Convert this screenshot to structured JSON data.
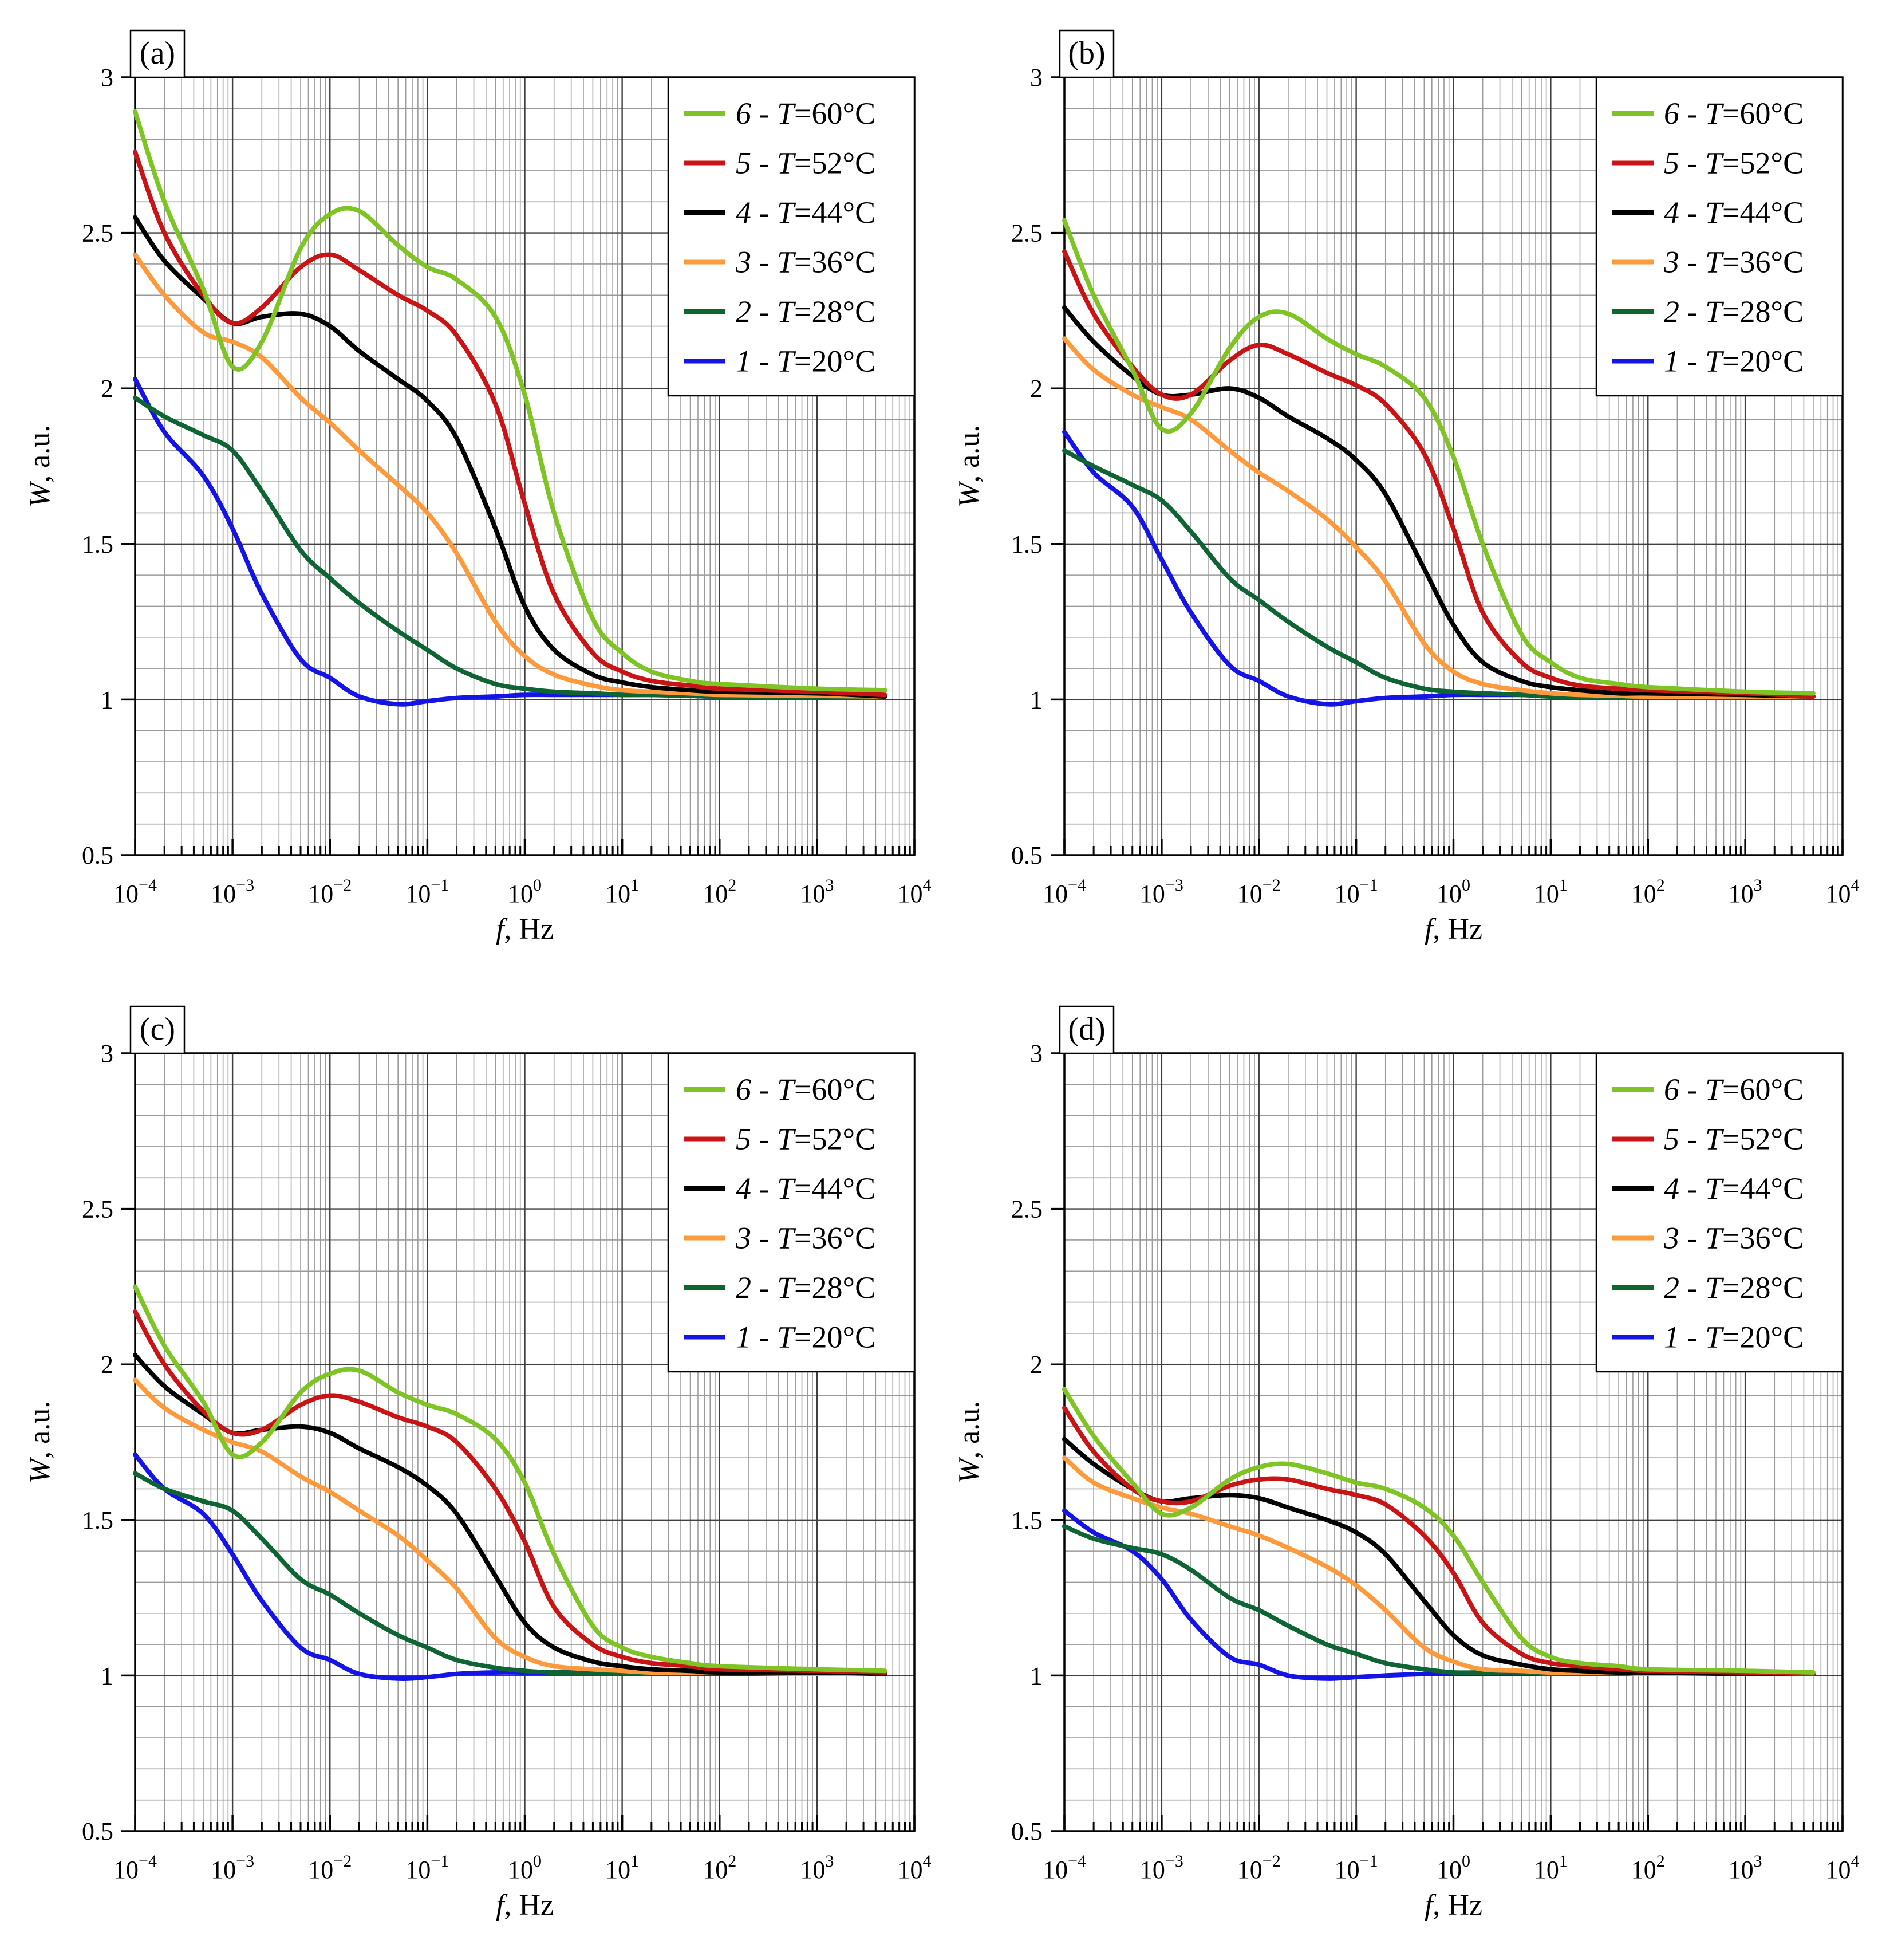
{
  "colors": {
    "1": "#1414e6",
    "2": "#0f6434",
    "3": "#ff9a3c",
    "4": "#000000",
    "5": "#c81414",
    "6": "#7ec424",
    "grid_major": "#404040",
    "grid_minor": "#9a9a9a"
  },
  "chart_data": [
    {
      "panel": "(a)",
      "type": "line",
      "xlabel": "f, Hz",
      "ylabel": "W, a.u.",
      "xscale": "log",
      "xlim": [
        0.0001,
        10000
      ],
      "ylim": [
        0.5,
        3
      ],
      "x_ticks": [
        "10^-4",
        "10^-3",
        "10^-2",
        "10^-1",
        "10^0",
        "10^1",
        "10^2",
        "10^3",
        "10^4"
      ],
      "y_ticks": [
        "0.5",
        "1",
        "1.5",
        "2",
        "2.5",
        "3"
      ],
      "grid": true,
      "legend_position": "top-right",
      "x": [
        0.0001,
        0.0002,
        0.0005,
        0.001,
        0.002,
        0.005,
        0.01,
        0.02,
        0.05,
        0.1,
        0.2,
        0.5,
        1,
        2,
        5,
        10,
        20,
        50,
        100,
        1000,
        5000
      ],
      "series": [
        {
          "name": "6 - T=60°C",
          "num": "6",
          "temp": "60",
          "color_key": "6",
          "values": [
            2.89,
            2.6,
            2.32,
            2.07,
            2.15,
            2.45,
            2.56,
            2.57,
            2.46,
            2.39,
            2.35,
            2.23,
            1.98,
            1.6,
            1.26,
            1.15,
            1.09,
            1.06,
            1.05,
            1.035,
            1.03
          ]
        },
        {
          "name": "5 - T=52°C",
          "num": "5",
          "temp": "52",
          "color_key": "5",
          "values": [
            2.76,
            2.5,
            2.3,
            2.21,
            2.26,
            2.39,
            2.43,
            2.38,
            2.3,
            2.25,
            2.17,
            1.95,
            1.63,
            1.34,
            1.15,
            1.09,
            1.06,
            1.045,
            1.035,
            1.025,
            1.015
          ]
        },
        {
          "name": "4 - T=44°C",
          "num": "4",
          "temp": "44",
          "color_key": "4",
          "values": [
            2.55,
            2.41,
            2.29,
            2.21,
            2.23,
            2.24,
            2.2,
            2.12,
            2.03,
            1.96,
            1.84,
            1.55,
            1.3,
            1.16,
            1.08,
            1.055,
            1.04,
            1.03,
            1.025,
            1.02,
            1.01
          ]
        },
        {
          "name": "3 - T=36°C",
          "num": "3",
          "temp": "36",
          "color_key": "3",
          "values": [
            2.43,
            2.3,
            2.18,
            2.15,
            2.1,
            1.97,
            1.89,
            1.8,
            1.69,
            1.6,
            1.47,
            1.25,
            1.14,
            1.08,
            1.045,
            1.03,
            1.025,
            1.02,
            1.015,
            1.012,
            1.01
          ]
        },
        {
          "name": "2 - T=28°C",
          "num": "2",
          "temp": "28",
          "color_key": "2",
          "values": [
            1.97,
            1.91,
            1.85,
            1.8,
            1.67,
            1.48,
            1.39,
            1.31,
            1.22,
            1.16,
            1.1,
            1.05,
            1.035,
            1.025,
            1.02,
            1.015,
            1.015,
            1.012,
            1.01,
            1.01,
            1.01
          ]
        },
        {
          "name": "1 - T=20°C",
          "num": "1",
          "temp": "20",
          "color_key": "1",
          "values": [
            2.03,
            1.86,
            1.72,
            1.55,
            1.34,
            1.13,
            1.07,
            1.01,
            0.985,
            0.995,
            1.005,
            1.01,
            1.015,
            1.015,
            1.015,
            1.015,
            1.015,
            1.012,
            1.01,
            1.01,
            1.01
          ]
        }
      ]
    },
    {
      "panel": "(b)",
      "type": "line",
      "xlabel": "f, Hz",
      "ylabel": "W, a.u.",
      "xscale": "log",
      "xlim": [
        0.0001,
        10000
      ],
      "ylim": [
        0.5,
        3
      ],
      "x_ticks": [
        "10^-4",
        "10^-3",
        "10^-2",
        "10^-1",
        "10^0",
        "10^1",
        "10^2",
        "10^3",
        "10^4"
      ],
      "y_ticks": [
        "0.5",
        "1",
        "1.5",
        "2",
        "2.5",
        "3"
      ],
      "grid": true,
      "legend_position": "top-right",
      "x": [
        0.0001,
        0.0002,
        0.0005,
        0.001,
        0.002,
        0.005,
        0.01,
        0.02,
        0.05,
        0.1,
        0.2,
        0.5,
        1,
        2,
        5,
        10,
        20,
        50,
        100,
        1000,
        5000
      ],
      "series": [
        {
          "name": "6 - T=60°C",
          "num": "6",
          "temp": "60",
          "color_key": "6",
          "values": [
            2.54,
            2.3,
            2.06,
            1.87,
            1.92,
            2.13,
            2.23,
            2.24,
            2.16,
            2.11,
            2.07,
            1.97,
            1.78,
            1.5,
            1.21,
            1.12,
            1.07,
            1.05,
            1.04,
            1.025,
            1.02
          ]
        },
        {
          "name": "5 - T=52°C",
          "num": "5",
          "temp": "52",
          "color_key": "5",
          "values": [
            2.44,
            2.24,
            2.07,
            1.98,
            1.98,
            2.09,
            2.14,
            2.11,
            2.05,
            2.01,
            1.95,
            1.79,
            1.55,
            1.28,
            1.12,
            1.07,
            1.045,
            1.035,
            1.03,
            1.02,
            1.01
          ]
        },
        {
          "name": "4 - T=44°C",
          "num": "4",
          "temp": "44",
          "color_key": "4",
          "values": [
            2.26,
            2.15,
            2.04,
            1.98,
            1.98,
            2.0,
            1.97,
            1.91,
            1.84,
            1.77,
            1.66,
            1.42,
            1.24,
            1.12,
            1.06,
            1.04,
            1.03,
            1.02,
            1.02,
            1.015,
            1.01
          ]
        },
        {
          "name": "3 - T=36°C",
          "num": "3",
          "temp": "36",
          "color_key": "3",
          "values": [
            2.16,
            2.06,
            1.98,
            1.94,
            1.9,
            1.8,
            1.73,
            1.67,
            1.58,
            1.49,
            1.38,
            1.18,
            1.09,
            1.05,
            1.03,
            1.02,
            1.015,
            1.012,
            1.01,
            1.01,
            1.01
          ]
        },
        {
          "name": "2 - T=28°C",
          "num": "2",
          "temp": "28",
          "color_key": "2",
          "values": [
            1.8,
            1.75,
            1.69,
            1.64,
            1.54,
            1.39,
            1.32,
            1.25,
            1.17,
            1.12,
            1.07,
            1.035,
            1.025,
            1.02,
            1.015,
            1.01,
            1.01,
            1.01,
            1.01,
            1.01,
            1.01
          ]
        },
        {
          "name": "1 - T=20°C",
          "num": "1",
          "temp": "20",
          "color_key": "1",
          "values": [
            1.86,
            1.73,
            1.62,
            1.45,
            1.28,
            1.11,
            1.06,
            1.01,
            0.985,
            0.995,
            1.005,
            1.01,
            1.015,
            1.015,
            1.015,
            1.015,
            1.015,
            1.012,
            1.01,
            1.01,
            1.01
          ]
        }
      ]
    },
    {
      "panel": "(c)",
      "type": "line",
      "xlabel": "f, Hz",
      "ylabel": "W, a.u.",
      "xscale": "log",
      "xlim": [
        0.0001,
        10000
      ],
      "ylim": [
        0.5,
        3
      ],
      "x_ticks": [
        "10^-4",
        "10^-3",
        "10^-2",
        "10^-1",
        "10^0",
        "10^1",
        "10^2",
        "10^3",
        "10^4"
      ],
      "y_ticks": [
        "0.5",
        "1",
        "1.5",
        "2",
        "2.5",
        "3"
      ],
      "grid": true,
      "legend_position": "top-right",
      "x": [
        0.0001,
        0.0002,
        0.0005,
        0.001,
        0.002,
        0.005,
        0.01,
        0.02,
        0.05,
        0.1,
        0.2,
        0.5,
        1,
        2,
        5,
        10,
        20,
        50,
        100,
        1000,
        5000
      ],
      "series": [
        {
          "name": "6 - T=60°C",
          "num": "6",
          "temp": "60",
          "color_key": "6",
          "values": [
            2.25,
            2.06,
            1.88,
            1.71,
            1.75,
            1.91,
            1.97,
            1.98,
            1.91,
            1.87,
            1.84,
            1.76,
            1.62,
            1.39,
            1.16,
            1.09,
            1.06,
            1.04,
            1.03,
            1.02,
            1.015
          ]
        },
        {
          "name": "5 - T=52°C",
          "num": "5",
          "temp": "52",
          "color_key": "5",
          "values": [
            2.17,
            2.0,
            1.85,
            1.78,
            1.79,
            1.87,
            1.9,
            1.88,
            1.83,
            1.8,
            1.75,
            1.6,
            1.43,
            1.22,
            1.1,
            1.06,
            1.04,
            1.03,
            1.02,
            1.015,
            1.01
          ]
        },
        {
          "name": "4 - T=44°C",
          "num": "4",
          "temp": "44",
          "color_key": "4",
          "values": [
            2.03,
            1.93,
            1.84,
            1.78,
            1.79,
            1.8,
            1.78,
            1.73,
            1.67,
            1.61,
            1.52,
            1.32,
            1.17,
            1.09,
            1.045,
            1.03,
            1.02,
            1.015,
            1.01,
            1.01,
            1.005
          ]
        },
        {
          "name": "3 - T=36°C",
          "num": "3",
          "temp": "36",
          "color_key": "3",
          "values": [
            1.95,
            1.86,
            1.79,
            1.75,
            1.72,
            1.64,
            1.59,
            1.53,
            1.45,
            1.37,
            1.28,
            1.12,
            1.06,
            1.03,
            1.02,
            1.015,
            1.01,
            1.01,
            1.01,
            1.005,
            1.005
          ]
        },
        {
          "name": "2 - T=28°C",
          "num": "2",
          "temp": "28",
          "color_key": "2",
          "values": [
            1.65,
            1.6,
            1.56,
            1.53,
            1.44,
            1.31,
            1.26,
            1.2,
            1.13,
            1.09,
            1.05,
            1.025,
            1.015,
            1.01,
            1.01,
            1.01,
            1.01,
            1.01,
            1.01,
            1.005,
            1.005
          ]
        },
        {
          "name": "1 - T=20°C",
          "num": "1",
          "temp": "20",
          "color_key": "1",
          "values": [
            1.71,
            1.6,
            1.52,
            1.39,
            1.24,
            1.09,
            1.05,
            1.005,
            0.99,
            0.995,
            1.005,
            1.01,
            1.01,
            1.01,
            1.01,
            1.01,
            1.01,
            1.01,
            1.005,
            1.005,
            1.005
          ]
        }
      ]
    },
    {
      "panel": "(d)",
      "type": "line",
      "xlabel": "f, Hz",
      "ylabel": "W, a.u.",
      "xscale": "log",
      "xlim": [
        0.0001,
        10000
      ],
      "ylim": [
        0.5,
        3
      ],
      "x_ticks": [
        "10^-4",
        "10^-3",
        "10^-2",
        "10^-1",
        "10^0",
        "10^1",
        "10^2",
        "10^3",
        "10^4"
      ],
      "y_ticks": [
        "0.5",
        "1",
        "1.5",
        "2",
        "2.5",
        "3"
      ],
      "grid": true,
      "legend_position": "top-right",
      "x": [
        0.0001,
        0.0002,
        0.0005,
        0.001,
        0.002,
        0.005,
        0.01,
        0.02,
        0.05,
        0.1,
        0.2,
        0.5,
        1,
        2,
        5,
        10,
        20,
        50,
        100,
        1000,
        5000
      ],
      "series": [
        {
          "name": "6 - T=60°C",
          "num": "6",
          "temp": "60",
          "color_key": "6",
          "values": [
            1.92,
            1.77,
            1.62,
            1.52,
            1.54,
            1.63,
            1.67,
            1.68,
            1.65,
            1.62,
            1.6,
            1.54,
            1.45,
            1.3,
            1.12,
            1.06,
            1.04,
            1.03,
            1.02,
            1.015,
            1.01
          ]
        },
        {
          "name": "5 - T=52°C",
          "num": "5",
          "temp": "52",
          "color_key": "5",
          "values": [
            1.86,
            1.72,
            1.6,
            1.56,
            1.56,
            1.61,
            1.63,
            1.63,
            1.6,
            1.58,
            1.55,
            1.45,
            1.33,
            1.17,
            1.07,
            1.04,
            1.03,
            1.02,
            1.015,
            1.01,
            1.005
          ]
        },
        {
          "name": "4 - T=44°C",
          "num": "4",
          "temp": "44",
          "color_key": "4",
          "values": [
            1.76,
            1.68,
            1.6,
            1.56,
            1.57,
            1.58,
            1.57,
            1.54,
            1.5,
            1.46,
            1.39,
            1.24,
            1.13,
            1.065,
            1.035,
            1.02,
            1.015,
            1.01,
            1.01,
            1.005,
            1.005
          ]
        },
        {
          "name": "3 - T=36°C",
          "num": "3",
          "temp": "36",
          "color_key": "3",
          "values": [
            1.7,
            1.62,
            1.57,
            1.54,
            1.52,
            1.48,
            1.45,
            1.41,
            1.35,
            1.29,
            1.21,
            1.09,
            1.045,
            1.02,
            1.015,
            1.01,
            1.01,
            1.01,
            1.005,
            1.005,
            1.005
          ]
        },
        {
          "name": "2 - T=28°C",
          "num": "2",
          "temp": "28",
          "color_key": "2",
          "values": [
            1.48,
            1.44,
            1.41,
            1.39,
            1.34,
            1.25,
            1.21,
            1.16,
            1.1,
            1.07,
            1.04,
            1.02,
            1.01,
            1.01,
            1.01,
            1.005,
            1.005,
            1.005,
            1.005,
            1.005,
            1.005
          ]
        },
        {
          "name": "1 - T=20°C",
          "num": "1",
          "temp": "20",
          "color_key": "1",
          "values": [
            1.53,
            1.46,
            1.4,
            1.31,
            1.18,
            1.06,
            1.035,
            1.0,
            0.99,
            0.995,
            1.0,
            1.005,
            1.005,
            1.005,
            1.005,
            1.005,
            1.005,
            1.005,
            1.005,
            1.005,
            1.005
          ]
        }
      ]
    }
  ]
}
